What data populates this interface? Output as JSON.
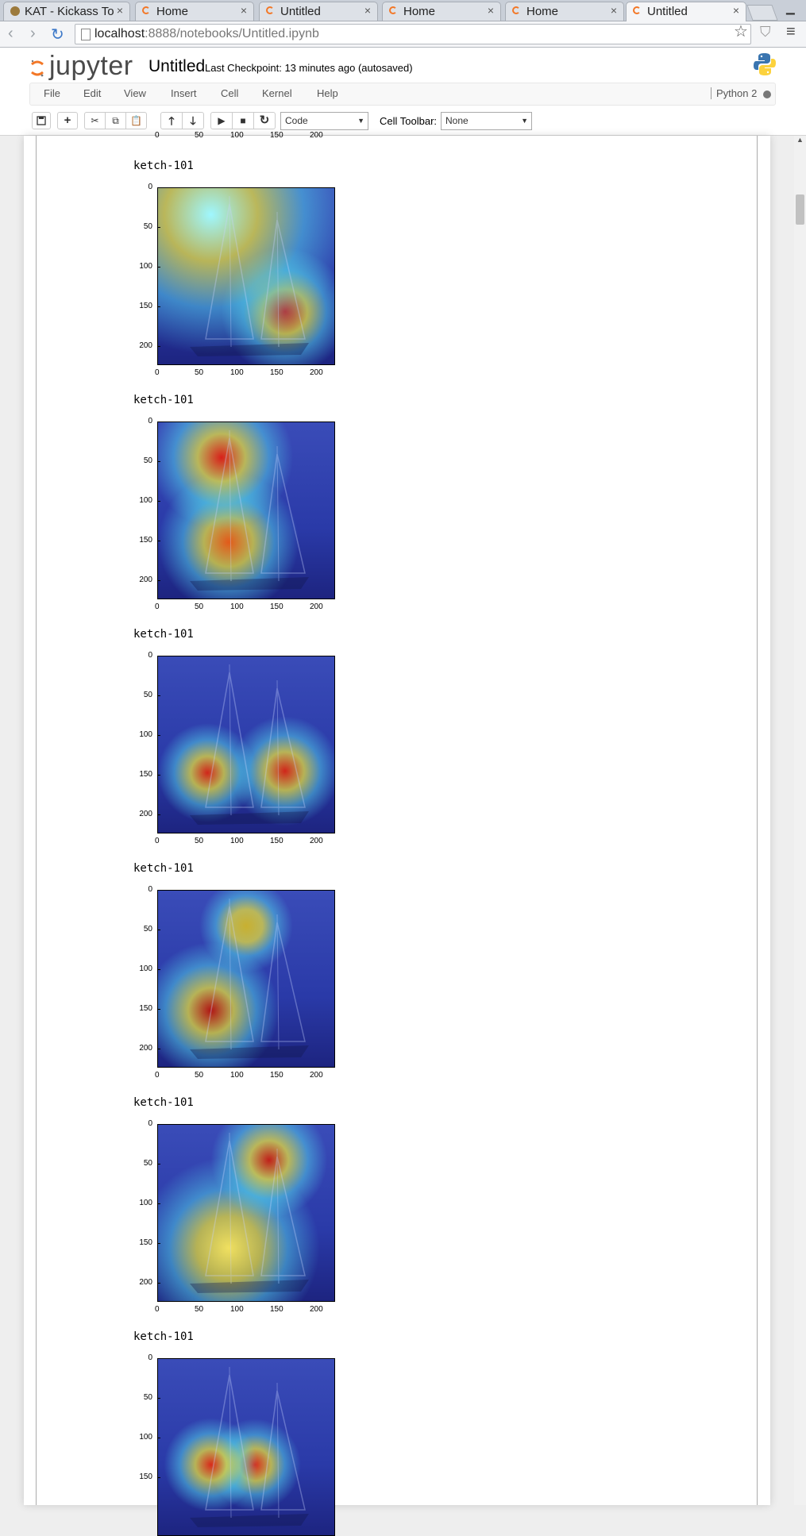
{
  "browser": {
    "tabs": [
      {
        "label": "KAT - Kickass To",
        "icon": "kat-favicon"
      },
      {
        "label": "Home",
        "icon": "jupyter-favicon"
      },
      {
        "label": "Untitled",
        "icon": "jupyter-favicon"
      },
      {
        "label": "Home",
        "icon": "jupyter-favicon"
      },
      {
        "label": "Home",
        "icon": "jupyter-favicon"
      },
      {
        "label": "Untitled",
        "icon": "jupyter-favicon",
        "active": true
      }
    ],
    "tab_close": "×",
    "url_host": "localhost",
    "url_path": ":8888/notebooks/Untitled.ipynb",
    "back": "‹",
    "forward": "›",
    "reload": "↻",
    "star": "☆",
    "menu": "≡",
    "shield": "⛉"
  },
  "jupyter": {
    "logo_text": "jupyter",
    "notebook_name": "Untitled",
    "checkpoint": "Last Checkpoint: 13 minutes ago (autosaved)",
    "menu": [
      "File",
      "Edit",
      "View",
      "Insert",
      "Cell",
      "Kernel",
      "Help"
    ],
    "kernel_name": "Python 2",
    "toolbar": {
      "cell_type": "Code",
      "cell_toolbar_label": "Cell Toolbar:",
      "cell_toolbar_value": "None"
    }
  },
  "output": {
    "top_ticks": [
      "0",
      "50",
      "100",
      "150",
      "200"
    ],
    "y_ticks": [
      "0",
      "50",
      "100",
      "150",
      "200"
    ],
    "x_ticks": [
      "0",
      "50",
      "100",
      "150",
      "200"
    ],
    "plots": [
      {
        "label": "ketch-101"
      },
      {
        "label": "ketch-101"
      },
      {
        "label": "ketch-101"
      },
      {
        "label": "ketch-101"
      },
      {
        "label": "ketch-101"
      },
      {
        "label": "ketch-101"
      }
    ]
  },
  "colors": {
    "jupyter_orange": "#f37726",
    "heatmap_low": "#1e2d9c",
    "heatmap_high": "#c41a1a"
  }
}
